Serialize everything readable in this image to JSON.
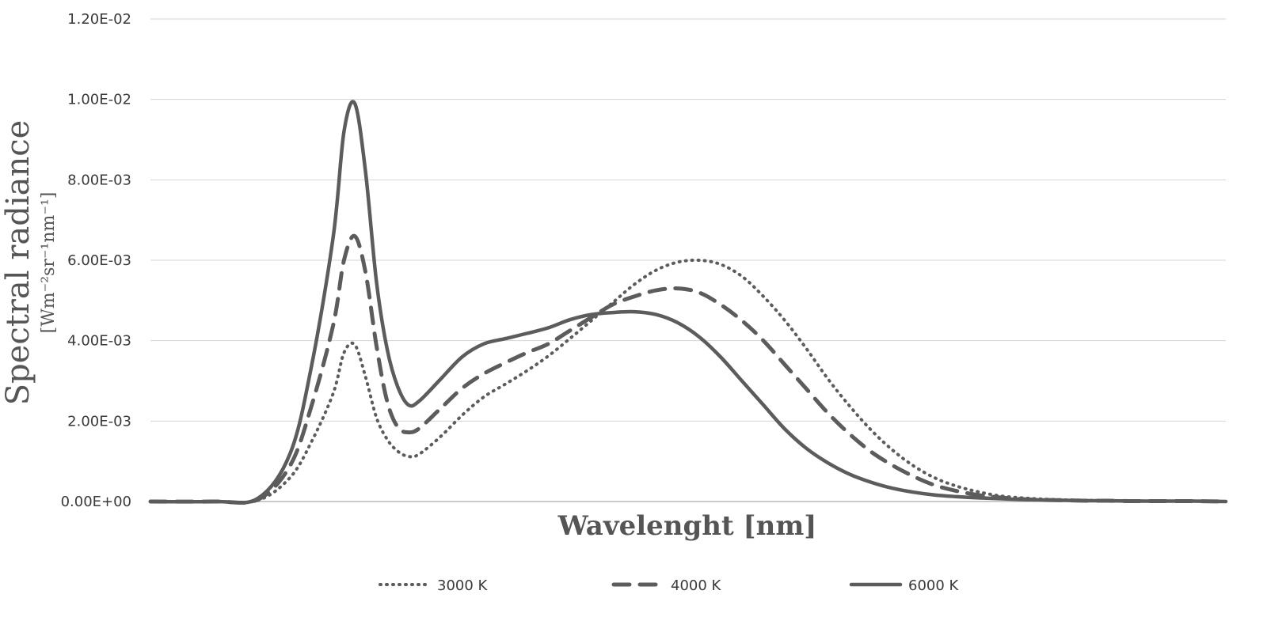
{
  "chart_data": {
    "type": "line",
    "title": "",
    "xlabel": "Wavelenght [nm]",
    "ylabel": "Spectral radiance",
    "ylabel_units": "[Wm⁻²sr⁻¹nm⁻¹]",
    "x_tick_labels_shown": false,
    "xlim": [
      0,
      100
    ],
    "ylim": [
      0,
      0.012
    ],
    "y_ticks": [
      "0.00E+00",
      "2.00E-03",
      "4.00E-03",
      "6.00E-03",
      "8.00E-03",
      "1.00E-02",
      "1.20E-02"
    ],
    "grid": "horizontal",
    "legend_position": "bottom",
    "color": "#5c5c5c",
    "x": [
      0,
      6,
      10,
      13,
      15,
      17,
      18,
      19,
      20,
      21,
      22,
      23,
      24,
      25,
      27,
      29,
      31,
      33,
      35,
      37,
      39,
      41,
      43,
      45,
      47,
      49,
      51,
      53,
      55,
      57,
      59,
      61,
      63,
      65,
      67,
      69,
      71,
      73,
      75,
      77,
      79,
      81,
      83,
      85,
      87,
      89,
      91,
      93,
      95,
      97,
      100
    ],
    "series": [
      {
        "name": "3000 K",
        "dash": "dotted",
        "values": [
          0,
          0,
          3e-05,
          0.0006,
          0.0015,
          0.0027,
          0.0037,
          0.0039,
          0.0031,
          0.0021,
          0.00155,
          0.00125,
          0.00112,
          0.00118,
          0.00162,
          0.00215,
          0.0026,
          0.00292,
          0.00325,
          0.00362,
          0.00405,
          0.0045,
          0.00495,
          0.0054,
          0.00575,
          0.00595,
          0.006,
          0.0059,
          0.0056,
          0.0051,
          0.0045,
          0.0038,
          0.00305,
          0.00238,
          0.00178,
          0.00128,
          0.00088,
          0.00058,
          0.00038,
          0.00024,
          0.00014,
          9e-05,
          6e-05,
          4e-05,
          3e-05,
          2e-05,
          2e-05,
          1e-05,
          1e-05,
          1e-05,
          0
        ]
      },
      {
        "name": "4000 K",
        "dash": "dashed",
        "values": [
          0,
          0,
          5e-05,
          0.0009,
          0.0024,
          0.0044,
          0.006,
          0.0066,
          0.0057,
          0.0039,
          0.0025,
          0.00185,
          0.00172,
          0.00182,
          0.00232,
          0.00282,
          0.00318,
          0.00345,
          0.0037,
          0.00392,
          0.00425,
          0.00458,
          0.0049,
          0.0051,
          0.00525,
          0.0053,
          0.0052,
          0.0049,
          0.0045,
          0.004,
          0.0034,
          0.0028,
          0.0022,
          0.00168,
          0.00124,
          0.0009,
          0.00062,
          0.0004,
          0.00026,
          0.00016,
          0.0001,
          6e-05,
          4e-05,
          3e-05,
          2e-05,
          2e-05,
          1e-05,
          1e-05,
          1e-05,
          1e-05,
          0
        ]
      },
      {
        "name": "6000 K",
        "dash": "solid",
        "values": [
          0,
          0,
          8e-05,
          0.0012,
          0.0034,
          0.0066,
          0.0092,
          0.0099,
          0.0082,
          0.0055,
          0.0038,
          0.00285,
          0.0024,
          0.0025,
          0.00305,
          0.0036,
          0.00392,
          0.00405,
          0.00418,
          0.00432,
          0.00452,
          0.00465,
          0.0047,
          0.00472,
          0.00465,
          0.00445,
          0.0041,
          0.0036,
          0.003,
          0.0024,
          0.0018,
          0.00132,
          0.00096,
          0.00068,
          0.00048,
          0.00033,
          0.00023,
          0.00016,
          0.00012,
          9e-05,
          7e-05,
          5e-05,
          4e-05,
          3e-05,
          2e-05,
          2e-05,
          1e-05,
          1e-05,
          1e-05,
          1e-05,
          0
        ]
      }
    ]
  }
}
